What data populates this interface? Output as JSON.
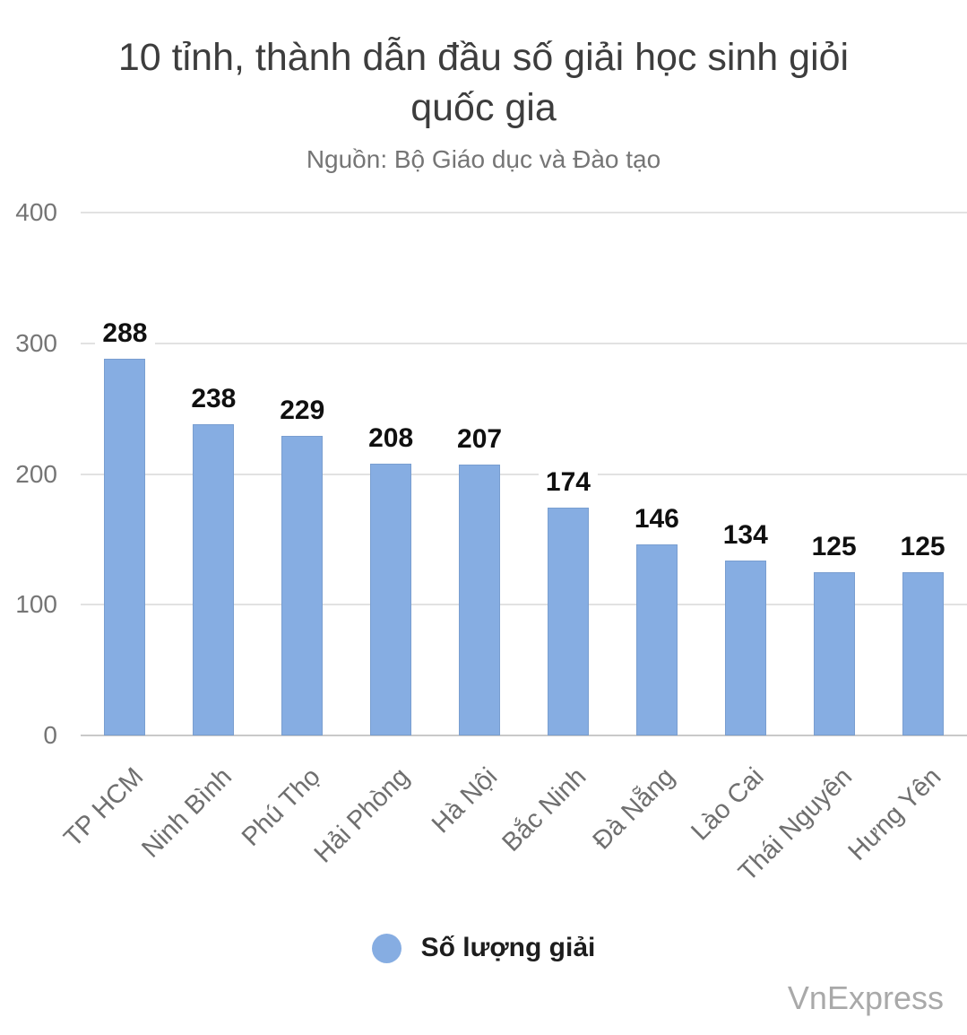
{
  "chart_data": {
    "type": "bar",
    "title": "10 tỉnh, thành dẫn đầu số giải học sinh giỏi quốc gia",
    "subtitle": "Nguồn: Bộ Giáo dục và Đào tạo",
    "categories": [
      "TP HCM",
      "Ninh Bình",
      "Phú Thọ",
      "Hải Phòng",
      "Hà Nội",
      "Bắc Ninh",
      "Đà Nẵng",
      "Lào Cai",
      "Thái Nguyên",
      "Hưng Yên"
    ],
    "series": [
      {
        "name": "Số lượng giải",
        "values": [
          288,
          238,
          229,
          208,
          207,
          174,
          146,
          134,
          125,
          125
        ]
      }
    ],
    "xlabel": "",
    "ylabel": "",
    "ylim": [
      0,
      400
    ],
    "yticks": [
      0,
      100,
      200,
      300,
      400
    ],
    "grid": true,
    "legend_position": "bottom",
    "bar_color": "#86ade2"
  },
  "watermark": "VnExpress",
  "colors": {
    "bar": "#86ade2",
    "title": "#3d3d3d",
    "axis_text": "#757575",
    "gridline": "#e2e2e2",
    "zero_line": "#c9c9c9",
    "value_label": "#101010",
    "watermark": "#a9a9a9"
  }
}
